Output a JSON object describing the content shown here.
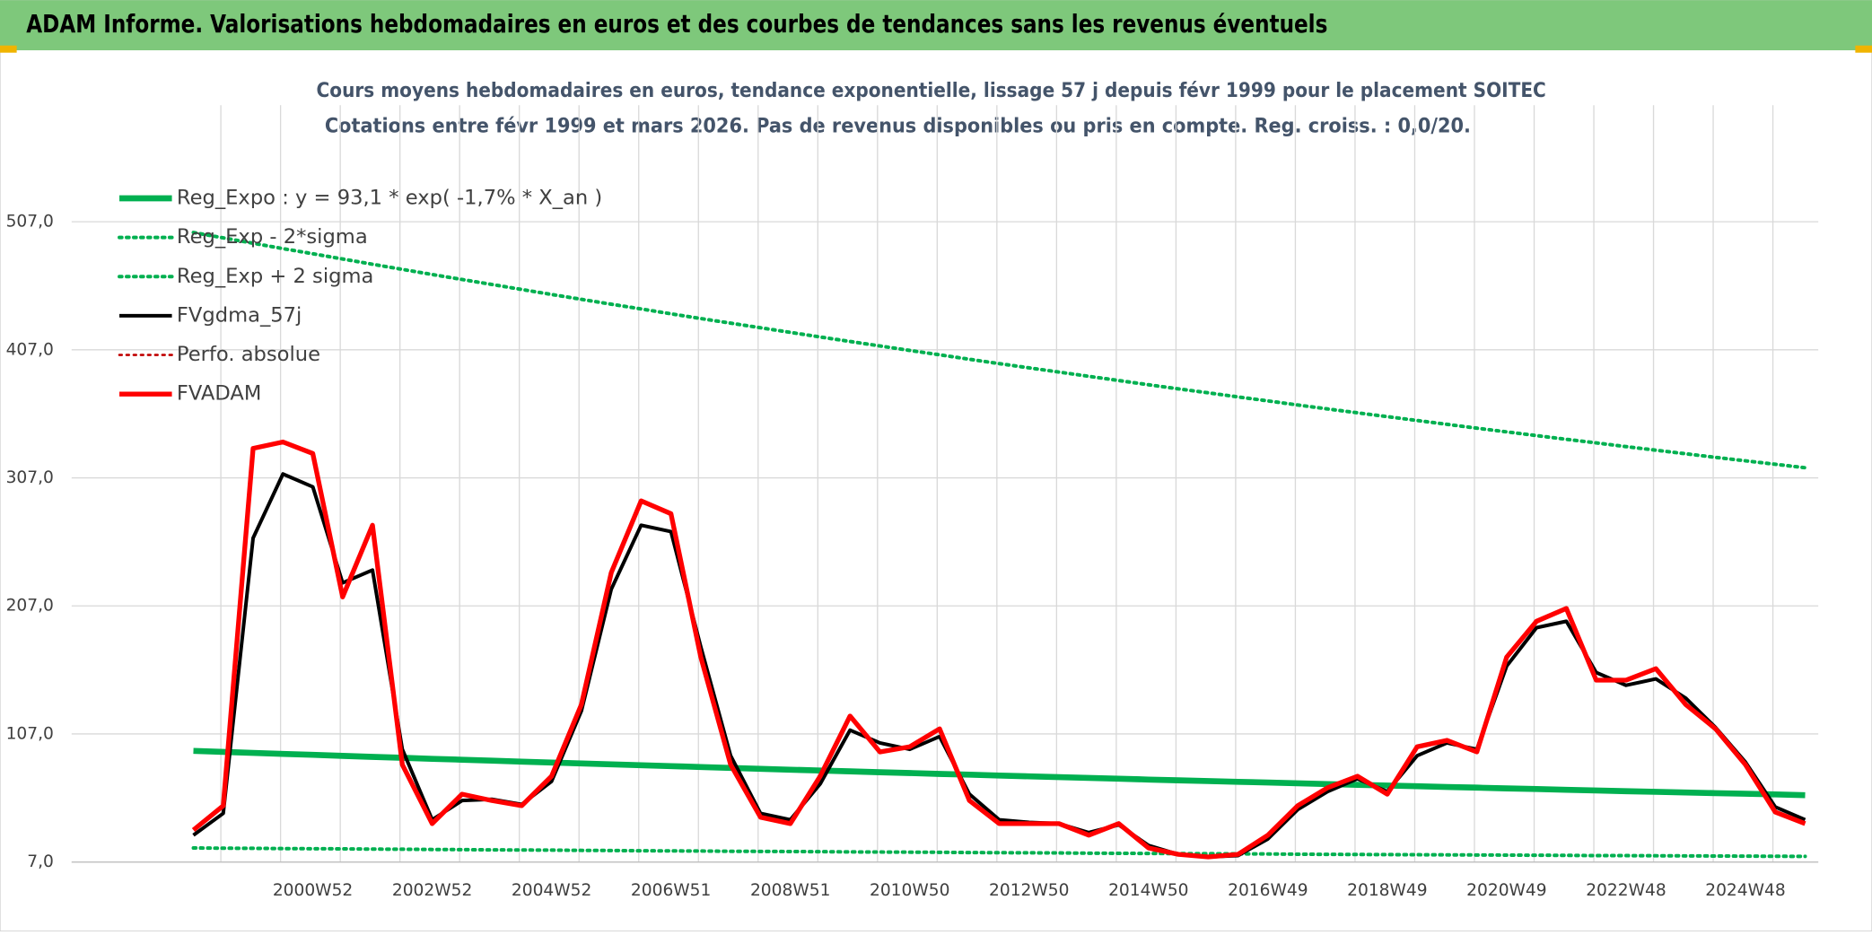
{
  "chart_data": {
    "type": "line",
    "title": "ADAM Informe. Valorisations hebdomadaires en euros et des courbes de tendances sans les revenus éventuels",
    "subtitle": [
      "Cours moyens hebdomadaires en euros, tendance exponentielle, lissage 57 j depuis févr 1999 pour le placement SOITEC",
      "Cotations entre févr 1999 et mars 2026. Pas de revenus disponibles ou pris en compte. Reg. croiss. : 0,0/20."
    ],
    "categories": [
      null,
      null,
      null,
      null,
      "2000W52",
      null,
      null,
      null,
      "2002W52",
      null,
      null,
      null,
      "2004W52",
      null,
      null,
      null,
      "2006W51",
      null,
      null,
      null,
      "2008W51",
      null,
      null,
      null,
      "2010W50",
      null,
      null,
      null,
      "2012W50",
      null,
      null,
      null,
      "2014W50",
      null,
      null,
      null,
      "2016W49",
      null,
      null,
      null,
      "2018W49",
      null,
      null,
      null,
      "2020W49",
      null,
      null,
      null,
      "2022W48",
      null,
      null,
      null,
      "2024W48",
      null,
      null
    ],
    "series": [
      {
        "name": "Reg_Expo : y = 93,1 * exp( -1,7% *  X_an )",
        "color": "#00b050",
        "dash": false,
        "line_width": 5,
        "values": [
          93.8,
          93.0,
          92.2,
          91.4,
          90.7,
          89.9,
          89.1,
          88.4,
          87.6,
          86.9,
          86.2,
          85.4,
          84.7,
          84.0,
          83.3,
          82.6,
          81.9,
          81.2,
          80.5,
          79.8,
          79.1,
          78.5,
          77.8,
          77.1,
          76.5,
          75.8,
          75.2,
          74.5,
          73.9,
          73.3,
          72.7,
          72.1,
          71.4,
          70.8,
          70.2,
          69.6,
          69.1,
          68.5,
          67.9,
          67.3,
          66.7,
          66.2,
          65.6,
          65.1,
          64.5,
          64.0,
          63.4,
          62.9,
          62.3,
          61.8,
          61.3,
          60.8,
          60.3,
          59.8,
          59.2
        ]
      },
      {
        "name": "Reg_Exp - 2*sigma",
        "color": "#00b050",
        "dash": true,
        "line_width": 3,
        "values": [
          18.0,
          17.8,
          17.7,
          17.5,
          17.4,
          17.3,
          17.1,
          17.0,
          16.8,
          16.7,
          16.5,
          16.4,
          16.3,
          16.1,
          16.0,
          15.8,
          15.7,
          15.6,
          15.4,
          15.3,
          15.2,
          15.1,
          14.9,
          14.8,
          14.7,
          14.6,
          14.4,
          14.3,
          14.2,
          14.1,
          13.9,
          13.8,
          13.7,
          13.6,
          13.5,
          13.4,
          13.3,
          13.1,
          13.0,
          12.9,
          12.8,
          12.7,
          12.6,
          12.5,
          12.4,
          12.3,
          12.2,
          12.0,
          12.0,
          11.9,
          11.8,
          11.7,
          11.6,
          11.5,
          11.4
        ]
      },
      {
        "name": "Reg_Exp + 2 sigma",
        "color": "#00b050",
        "dash": true,
        "line_width": 3,
        "values": [
          498.6,
          494.4,
          490.2,
          486.0,
          482.0,
          477.9,
          473.8,
          469.8,
          465.8,
          461.9,
          458.0,
          454.1,
          450.2,
          446.4,
          442.6,
          438.9,
          435.1,
          431.4,
          427.8,
          424.2,
          420.6,
          417.0,
          413.5,
          410.0,
          406.5,
          403.1,
          399.6,
          396.2,
          392.9,
          389.6,
          386.3,
          383.0,
          379.7,
          376.5,
          373.4,
          370.2,
          367.1,
          363.9,
          360.8,
          357.8,
          354.8,
          351.8,
          348.8,
          345.8,
          342.9,
          340.0,
          337.1,
          334.3,
          331.4,
          328.6,
          325.8,
          323.0,
          320.3,
          317.6,
          314.9
        ]
      },
      {
        "name": "FVgdma_57j",
        "color": "#000000",
        "dash": false,
        "line_width": 3,
        "values": [
          28,
          45,
          260,
          310,
          300,
          225,
          235,
          95,
          40,
          55,
          56,
          52,
          70,
          125,
          220,
          270,
          265,
          175,
          90,
          45,
          40,
          68,
          110,
          100,
          95,
          105,
          60,
          40,
          38,
          37,
          30,
          36,
          20,
          13,
          11,
          12,
          25,
          48,
          62,
          72,
          62,
          90,
          100,
          95,
          160,
          190,
          195,
          155,
          145,
          150,
          135,
          112,
          85,
          50,
          40
        ]
      },
      {
        "name": "Perfo. absolue",
        "color": "#c00000",
        "dash": true,
        "line_width": 2,
        "values": [
          null,
          null,
          null,
          null,
          null,
          null,
          null,
          null,
          null,
          null,
          null,
          null,
          null,
          null,
          null,
          null,
          null,
          null,
          null,
          null,
          null,
          null,
          null,
          null,
          null,
          null,
          null,
          null,
          null,
          null,
          null,
          null,
          null,
          null,
          null,
          null,
          null,
          null,
          null,
          null,
          null,
          null,
          null,
          null,
          null,
          null,
          null,
          null,
          null,
          null,
          null,
          null,
          null,
          null,
          null
        ]
      },
      {
        "name": "FVADAM",
        "color": "#ff0000",
        "dash": false,
        "line_width": 4,
        "values": [
          32,
          51,
          330,
          335,
          326,
          214,
          270,
          83,
          37,
          60,
          55,
          51,
          74,
          130,
          233,
          289,
          279,
          167,
          83,
          42,
          37,
          74,
          121,
          93,
          97,
          111,
          55,
          37,
          37,
          37,
          28,
          37,
          18,
          13,
          11,
          13,
          28,
          51,
          65,
          74,
          60,
          97,
          102,
          93,
          167,
          195,
          205,
          149,
          149,
          158,
          130,
          111,
          83,
          46,
          37
        ]
      }
    ],
    "ylim": [
      7,
      598
    ],
    "yticks": [
      {
        "value": 7,
        "label": "7,0"
      },
      {
        "value": 107,
        "label": "107,0"
      },
      {
        "value": 207,
        "label": "207,0"
      },
      {
        "value": 307,
        "label": "307,0"
      },
      {
        "value": 407,
        "label": "407,0"
      },
      {
        "value": 507,
        "label": "507,0"
      }
    ],
    "grid": true,
    "legend": "upper left"
  }
}
